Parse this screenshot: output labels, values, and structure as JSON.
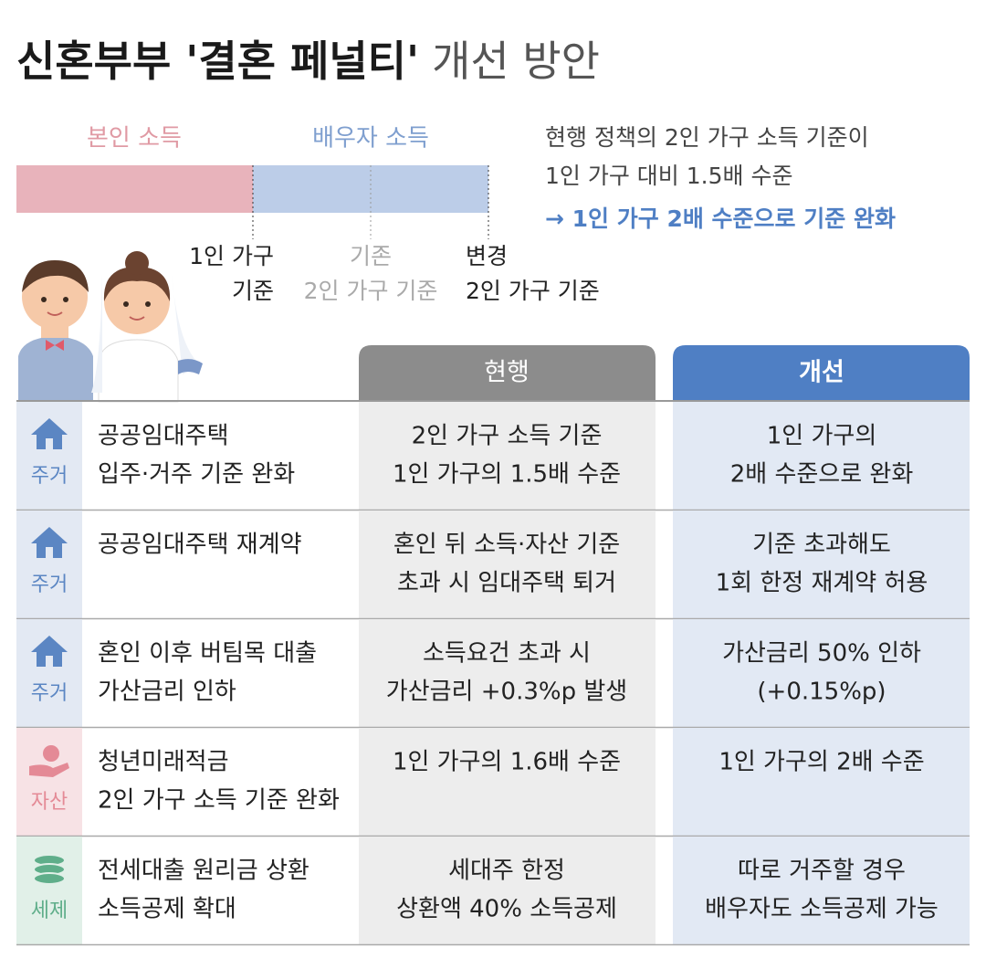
{
  "header": {
    "title_bold": "신혼부부 '결혼 페널티'",
    "title_light": "개선 방안"
  },
  "diagram": {
    "own_income": "본인 소득",
    "spouse_income": "배우자 소득",
    "markers": [
      [
        "1인 가구",
        "기준"
      ],
      [
        "기존",
        "2인 가구 기준"
      ],
      [
        "변경",
        "2인 가구 기준"
      ]
    ],
    "note": [
      "현행 정책의 2인 가구 소득 기준이",
      "1인 가구 대비 1.5배 수준"
    ],
    "highlight": "→ 1인 가구 2배 수준으로 기준 완화"
  },
  "table": {
    "columns": [
      "현행",
      "개선"
    ],
    "rows": [
      {
        "category": "주거",
        "item": [
          "공공임대주택",
          "입주·거주 기준 완화"
        ],
        "current": [
          "2인 가구 소득 기준",
          "1인 가구의 1.5배 수준"
        ],
        "improved": [
          "1인 가구의",
          "2배 수준으로 완화"
        ]
      },
      {
        "category": "주거",
        "item": [
          "공공임대주택 재계약"
        ],
        "current": [
          "혼인 뒤 소득·자산 기준",
          "초과 시 임대주택 퇴거"
        ],
        "improved": [
          "기준 초과해도",
          "1회 한정 재계약 허용"
        ]
      },
      {
        "category": "주거",
        "item": [
          "혼인 이후 버팀목 대출",
          "가산금리 인하"
        ],
        "current": [
          "소득요건 초과 시",
          "가산금리 +0.3%p 발생"
        ],
        "improved": [
          "가산금리 50% 인하",
          "(+0.15%p)"
        ]
      },
      {
        "category": "자산",
        "item": [
          "청년미래적금",
          "2인 가구 소득 기준 완화"
        ],
        "current": [
          "1인 가구의 1.6배 수준"
        ],
        "improved": [
          "1인 가구의 2배 수준"
        ]
      },
      {
        "category": "세제",
        "item": [
          "전세대출 원리금 상환",
          "소득공제 확대"
        ],
        "current": [
          "세대주 한정",
          "상환액 40% 소득공제"
        ],
        "improved": [
          "따로 거주할 경우",
          "배우자도 소득공제 가능"
        ]
      }
    ]
  }
}
